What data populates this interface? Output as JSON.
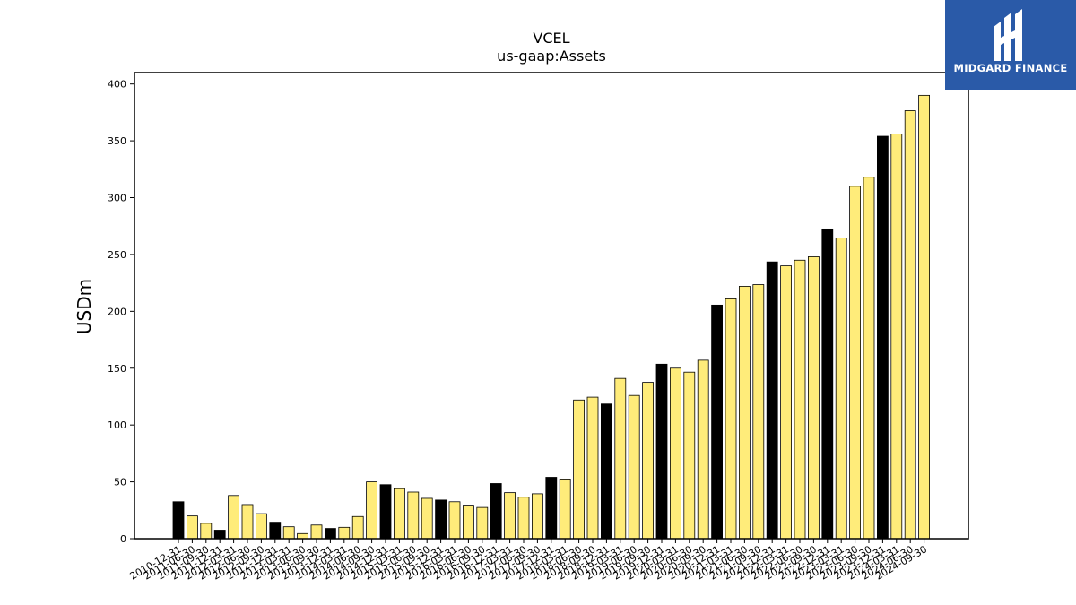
{
  "chart_data": {
    "type": "bar",
    "title": "VCEL",
    "subtitle": "us-gaap:Assets",
    "xlabel": "",
    "ylabel": "USDm",
    "ylim": [
      0,
      410
    ],
    "yticks": [
      0,
      50,
      100,
      150,
      200,
      250,
      300,
      350,
      400
    ],
    "grid": false,
    "legend": "none",
    "colors": {
      "annual": "#000000",
      "quarterly": "#ffec7a",
      "edge": "#000000"
    },
    "categories": [
      "2010-12-31",
      "2011-06-30",
      "2011-09-30",
      "2011-12-31",
      "2012-03-31",
      "2012-06-30",
      "2012-09-30",
      "2012-12-31",
      "2013-03-31",
      "2013-06-30",
      "2013-09-30",
      "2013-12-31",
      "2014-03-31",
      "2014-06-30",
      "2014-09-30",
      "2014-12-31",
      "2015-03-31",
      "2015-06-30",
      "2015-09-30",
      "2015-12-31",
      "2016-03-31",
      "2016-06-30",
      "2016-09-30",
      "2016-12-31",
      "2017-03-31",
      "2017-06-30",
      "2017-09-30",
      "2017-12-31",
      "2018-03-31",
      "2018-06-30",
      "2018-09-30",
      "2018-12-31",
      "2019-03-31",
      "2019-06-30",
      "2019-09-30",
      "2019-12-31",
      "2020-03-31",
      "2020-06-30",
      "2020-09-30",
      "2020-12-31",
      "2021-03-31",
      "2021-06-30",
      "2021-09-30",
      "2021-12-31",
      "2022-03-31",
      "2022-06-30",
      "2022-09-30",
      "2022-12-31",
      "2023-03-31",
      "2023-06-30",
      "2023-09-30",
      "2023-12-31",
      "2024-03-31",
      "2024-06-30",
      "2024-09-30"
    ],
    "values": [
      32.5,
      20,
      13.5,
      7.5,
      38,
      30,
      22,
      14.5,
      10.5,
      4.5,
      12,
      9,
      10,
      19.5,
      50,
      47.5,
      44,
      41,
      35.5,
      34,
      32.5,
      29.5,
      27.5,
      48.5,
      40.5,
      36.5,
      39.5,
      54,
      52.5,
      122,
      124.5,
      118.5,
      141,
      126,
      137.5,
      153.5,
      150,
      146.5,
      157,
      205.5,
      211,
      222,
      223.5,
      243.5,
      240,
      245,
      248,
      272.5,
      264.5,
      310,
      318,
      354,
      356,
      376.5,
      390
    ],
    "annual_flags": [
      1,
      0,
      0,
      1,
      0,
      0,
      0,
      1,
      0,
      0,
      0,
      1,
      0,
      0,
      0,
      1,
      0,
      0,
      0,
      1,
      0,
      0,
      0,
      1,
      0,
      0,
      0,
      1,
      0,
      0,
      0,
      1,
      0,
      0,
      0,
      1,
      0,
      0,
      0,
      1,
      0,
      0,
      0,
      1,
      0,
      0,
      0,
      1,
      0,
      0,
      0,
      1,
      0,
      0,
      0
    ]
  },
  "logo": {
    "text": "MIDGARD FINANCE",
    "bg_color": "#2a5aa8",
    "icon": "midgard-logo-icon"
  }
}
